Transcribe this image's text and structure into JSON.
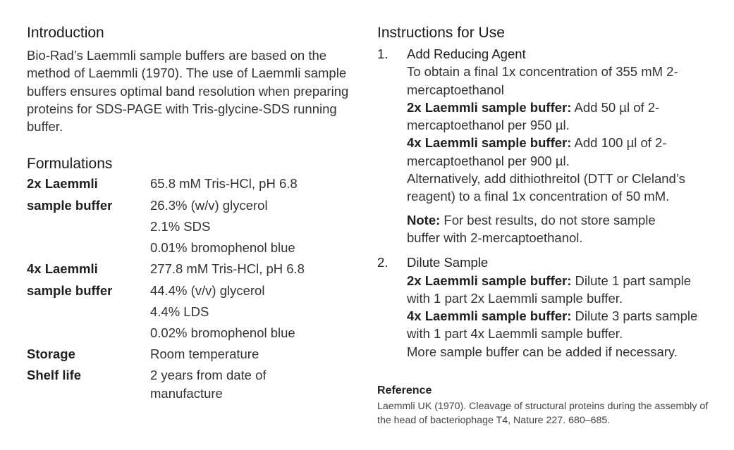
{
  "introduction": {
    "heading": "Introduction",
    "text": "Bio-Rad’s Laemmli sample buffers are based on the method of Laemmli (1970). The use of Laemmli sample buffers ensures optimal band resolution when preparing proteins for SDS-PAGE with Tris-glycine-SDS running buffer."
  },
  "formulations": {
    "heading": "Formulations",
    "rows": [
      {
        "key": "2x Laemmli",
        "value": "65.8 mM Tris-HCl, pH 6.8"
      },
      {
        "key": "sample buffer",
        "value": "26.3% (w/v) glycerol"
      },
      {
        "key": "",
        "value": "2.1% SDS"
      },
      {
        "key": "",
        "value": "0.01% bromophenol blue"
      },
      {
        "key": "4x Laemmli",
        "value": "277.8 mM Tris-HCl, pH 6.8"
      },
      {
        "key": "sample buffer",
        "value": "44.4% (v/v) glycerol"
      },
      {
        "key": "",
        "value": "4.4% LDS"
      },
      {
        "key": "",
        "value": "0.02% bromophenol blue"
      },
      {
        "key": "Storage",
        "value": "Room temperature"
      },
      {
        "key": "Shelf life",
        "value": "2 years from date of manufacture"
      }
    ]
  },
  "instructions": {
    "heading": "Instructions for Use",
    "step1": {
      "num": "1.",
      "title": "Add Reducing Agent",
      "intro": "To obtain a final 1x concentration of 355 mM 2-mercaptoethanol",
      "p2x_label": "2x Laemmli sample buffer:",
      "p2x_text": " Add 50 µl of 2-mercaptoethanol per 950 µl.",
      "p4x_label": "4x Laemmli sample buffer:",
      "p4x_text": " Add 100 µl of 2-mercaptoethanol per 900 µl.",
      "alt": "Alternatively, add dithiothreitol (DTT or Cleland’s reagent) to a final 1x concentration of 50 mM.",
      "note_label": "Note:",
      "note_text": " For best results, do not store sample buffer with 2-mercaptoethanol."
    },
    "step2": {
      "num": "2.",
      "title": "Dilute Sample",
      "p2x_label": "2x Laemmli sample buffer:",
      "p2x_text": " Dilute 1 part sample with 1 part 2x Laemmli sample buffer.",
      "p4x_label": "4x Laemmli sample buffer:",
      "p4x_text": " Dilute 3 parts sample with 1 part 4x Laemmli sample buffer.",
      "more": "More sample buffer can be added if necessary."
    }
  },
  "reference": {
    "heading": "Reference",
    "text": "Laemmli UK (1970). Cleavage of structural proteins during the assembly of the head of bacteriophage T4, Nature 227. 680–685."
  }
}
